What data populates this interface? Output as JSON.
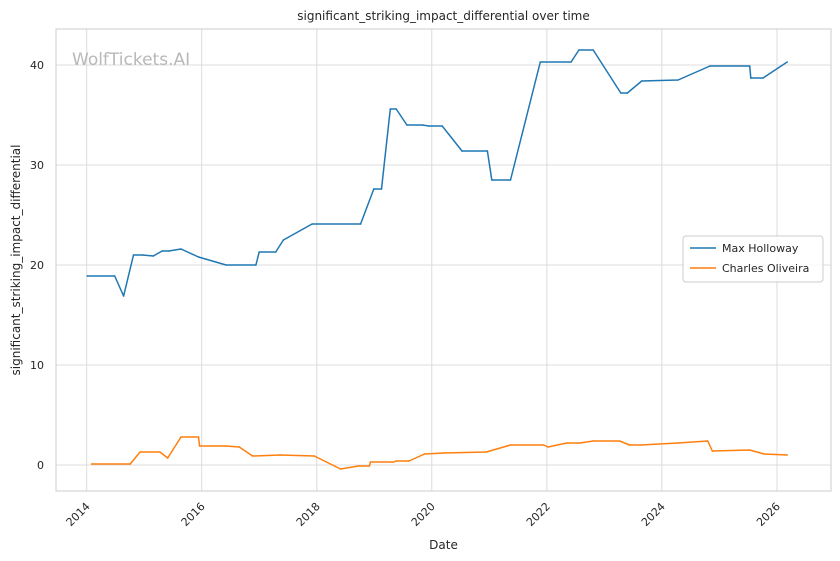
{
  "chart_data": {
    "type": "line",
    "title": "significant_striking_impact_differential over time",
    "xlabel": "Date",
    "ylabel": "significant_striking_impact_differential",
    "watermark": "WolfTickets.AI",
    "xlim": [
      "2013-06-20",
      "2026-12-10"
    ],
    "ylim": [
      -2.6,
      43.6
    ],
    "x_ticks": [
      "2014",
      "2016",
      "2018",
      "2020",
      "2022",
      "2024",
      "2026"
    ],
    "y_ticks": [
      0,
      10,
      20,
      30,
      40
    ],
    "grid": true,
    "legend_position": "center-right",
    "series": [
      {
        "name": "Max Holloway",
        "color": "#1f77b4",
        "points": [
          [
            "2014-01-04",
            18.9
          ],
          [
            "2014-06-28",
            18.9
          ],
          [
            "2014-08-23",
            16.9
          ],
          [
            "2014-10-25",
            21.0
          ],
          [
            "2014-12-20",
            21.0
          ],
          [
            "2015-02-28",
            20.9
          ],
          [
            "2015-04-25",
            21.4
          ],
          [
            "2015-06-06",
            21.4
          ],
          [
            "2015-08-23",
            21.6
          ],
          [
            "2015-12-12",
            20.8
          ],
          [
            "2016-06-04",
            20.0
          ],
          [
            "2016-12-10",
            20.0
          ],
          [
            "2016-12-31",
            21.3
          ],
          [
            "2017-04-15",
            21.3
          ],
          [
            "2017-06-03",
            22.5
          ],
          [
            "2017-12-02",
            24.1
          ],
          [
            "2018-10-06",
            24.1
          ],
          [
            "2018-12-29",
            27.6
          ],
          [
            "2019-02-16",
            27.6
          ],
          [
            "2019-04-13",
            35.6
          ],
          [
            "2019-05-20",
            35.6
          ],
          [
            "2019-07-27",
            34.0
          ],
          [
            "2019-11-02",
            34.0
          ],
          [
            "2019-12-14",
            33.9
          ],
          [
            "2020-03-07",
            33.9
          ],
          [
            "2020-07-11",
            31.4
          ],
          [
            "2020-12-19",
            31.4
          ],
          [
            "2021-01-16",
            28.5
          ],
          [
            "2021-05-15",
            28.5
          ],
          [
            "2021-11-20",
            40.3
          ],
          [
            "2022-06-04",
            40.3
          ],
          [
            "2022-07-23",
            41.5
          ],
          [
            "2022-10-22",
            41.5
          ],
          [
            "2023-04-15",
            37.2
          ],
          [
            "2023-05-27",
            37.2
          ],
          [
            "2023-08-26",
            38.4
          ],
          [
            "2024-04-13",
            38.5
          ],
          [
            "2024-11-02",
            39.9
          ],
          [
            "2025-07-12",
            39.9
          ],
          [
            "2025-07-19",
            38.7
          ],
          [
            "2025-10-04",
            38.7
          ],
          [
            "2026-03-07",
            40.3
          ]
        ]
      },
      {
        "name": "Charles Oliveira",
        "color": "#ff7f0e",
        "points": [
          [
            "2014-02-01",
            0.1
          ],
          [
            "2014-10-04",
            0.1
          ],
          [
            "2014-12-06",
            1.3
          ],
          [
            "2015-04-11",
            1.3
          ],
          [
            "2015-05-30",
            0.7
          ],
          [
            "2015-08-23",
            2.8
          ],
          [
            "2015-12-12",
            2.8
          ],
          [
            "2015-12-19",
            1.9
          ],
          [
            "2016-06-04",
            1.9
          ],
          [
            "2016-08-27",
            1.8
          ],
          [
            "2016-11-19",
            0.9
          ],
          [
            "2017-05-13",
            1.0
          ],
          [
            "2017-12-16",
            0.9
          ],
          [
            "2018-06-01",
            -0.4
          ],
          [
            "2018-09-22",
            -0.1
          ],
          [
            "2018-12-01",
            -0.1
          ],
          [
            "2018-12-08",
            0.3
          ],
          [
            "2019-05-04",
            0.3
          ],
          [
            "2019-05-18",
            0.4
          ],
          [
            "2019-08-10",
            0.4
          ],
          [
            "2019-11-16",
            1.1
          ],
          [
            "2020-03-14",
            1.2
          ],
          [
            "2020-12-12",
            1.3
          ],
          [
            "2021-05-15",
            2.0
          ],
          [
            "2021-12-11",
            2.0
          ],
          [
            "2022-01-08",
            1.8
          ],
          [
            "2022-05-07",
            2.2
          ],
          [
            "2022-07-30",
            2.2
          ],
          [
            "2022-10-22",
            2.4
          ],
          [
            "2023-04-08",
            2.4
          ],
          [
            "2023-06-10",
            2.0
          ],
          [
            "2023-08-19",
            2.0
          ],
          [
            "2024-04-13",
            2.2
          ],
          [
            "2024-10-19",
            2.4
          ],
          [
            "2024-11-16",
            1.4
          ],
          [
            "2025-07-12",
            1.5
          ],
          [
            "2025-10-11",
            1.1
          ],
          [
            "2026-03-07",
            1.0
          ]
        ]
      }
    ]
  }
}
